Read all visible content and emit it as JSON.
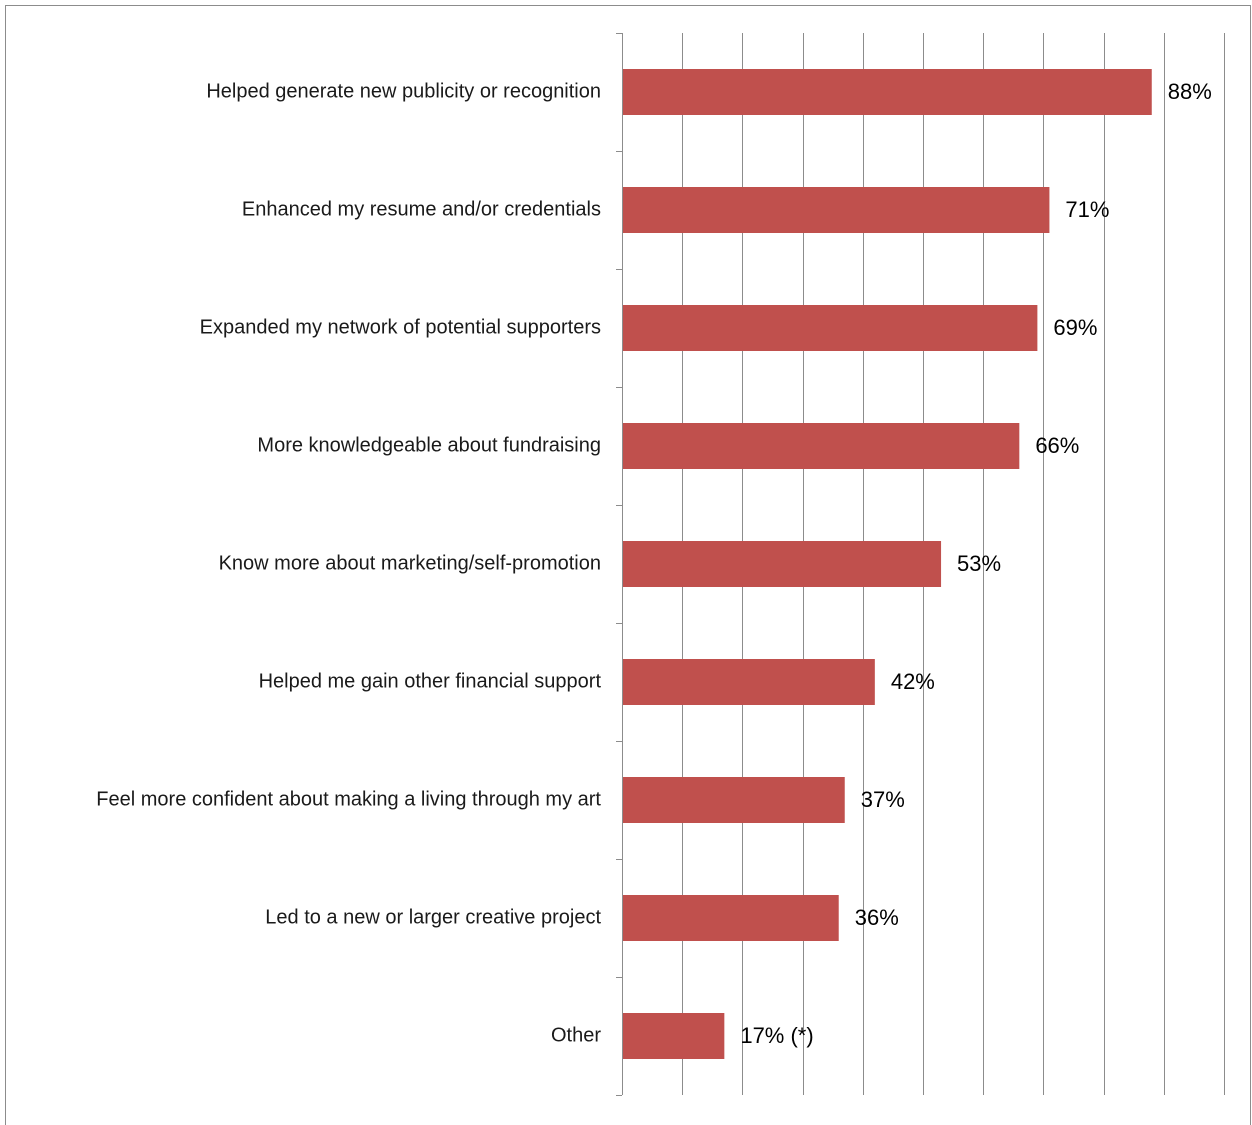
{
  "chart_data": {
    "type": "bar",
    "orientation": "horizontal",
    "categories": [
      "Helped generate new publicity or recognition",
      "Enhanced my resume and/or credentials",
      "Expanded my network of potential supporters",
      "More knowledgeable about fundraising",
      "Know more about marketing/self-promotion",
      "Helped me gain other financial support",
      "Feel more confident about making a living through my art",
      "Led to a new or larger creative project",
      "Other"
    ],
    "values": [
      88,
      71,
      69,
      66,
      53,
      42,
      37,
      36,
      17
    ],
    "data_labels": [
      "88%",
      "71%",
      "69%",
      "66%",
      "53%",
      "42%",
      "37%",
      "36%",
      "17% (*)"
    ],
    "xlim": [
      0,
      100
    ],
    "grid": true,
    "legend": "none",
    "bar_color": "#c0504d"
  }
}
